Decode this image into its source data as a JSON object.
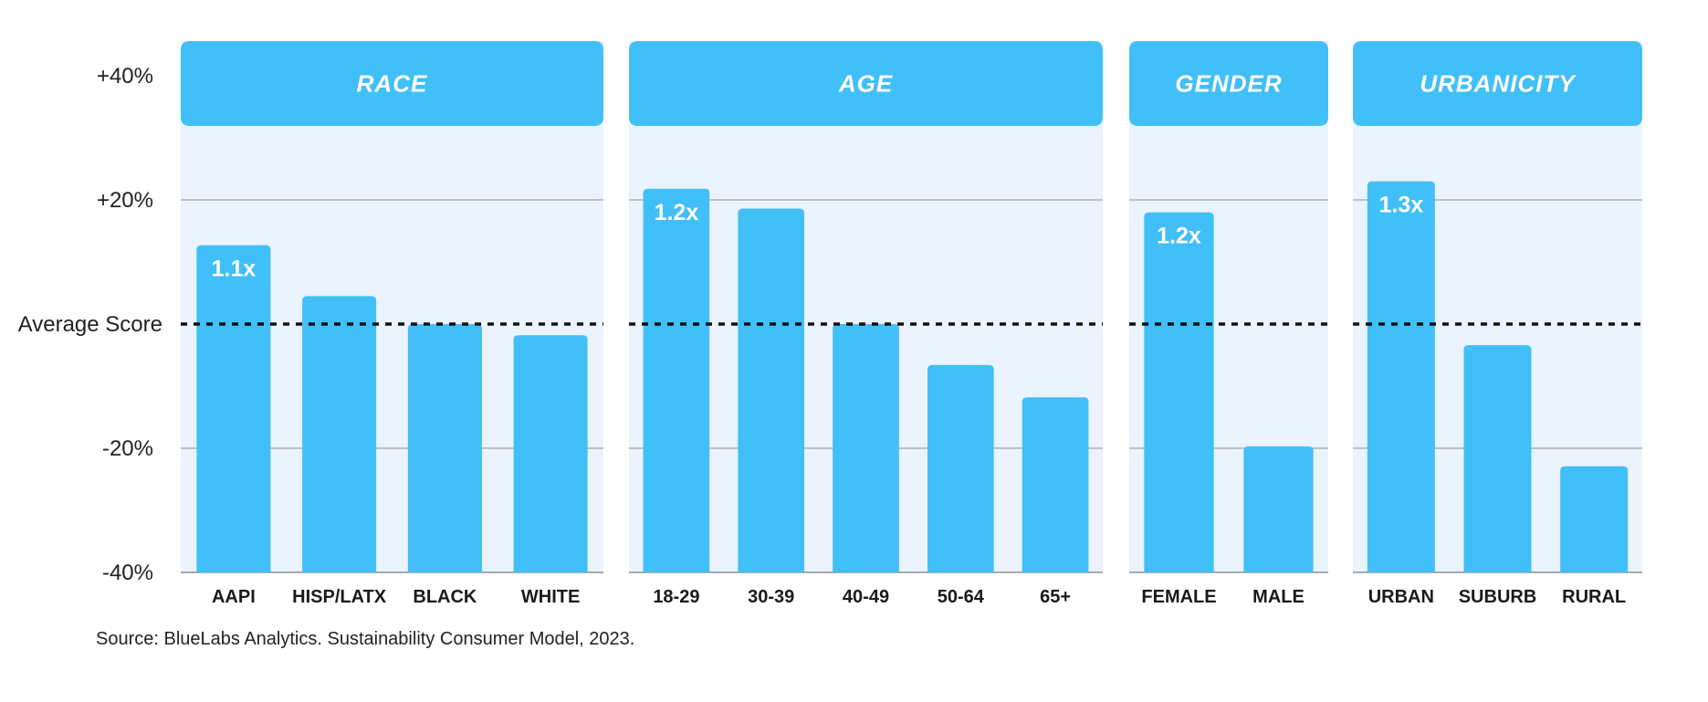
{
  "chart_data": {
    "type": "bar",
    "ylim": [
      -40,
      40
    ],
    "yticks": [
      {
        "value": 40,
        "label": "+40%"
      },
      {
        "value": 20,
        "label": "+20%"
      },
      {
        "value": 0,
        "label": "Average Score"
      },
      {
        "value": -20,
        "label": "-20%"
      },
      {
        "value": -40,
        "label": "-40%"
      }
    ],
    "reference_line": {
      "value": 0,
      "style": "dashed"
    },
    "grid": true,
    "colors": {
      "bar": "#41bff8",
      "panel_bg": "#eaf3fe",
      "header": "#41bff8",
      "grid": "#8a8f96"
    },
    "panels": [
      {
        "title": "RACE",
        "categories": [
          "AAPI",
          "HISP/LATX",
          "BLACK",
          "WHITE"
        ],
        "values": [
          12.7,
          4.5,
          0,
          -1.8
        ],
        "labels": [
          "1.1x",
          "",
          "",
          ""
        ]
      },
      {
        "title": "AGE",
        "categories": [
          "18-29",
          "30-39",
          "40-49",
          "50-64",
          "65+"
        ],
        "values": [
          21.8,
          18.6,
          0,
          -6.6,
          -11.8
        ],
        "labels": [
          "1.2x",
          "",
          "",
          "",
          ""
        ]
      },
      {
        "title": "GENDER",
        "categories": [
          "FEMALE",
          "MALE"
        ],
        "values": [
          18.0,
          -19.7
        ],
        "labels": [
          "1.2x",
          ""
        ]
      },
      {
        "title": "URBANICITY",
        "categories": [
          "URBAN",
          "SUBURB",
          "RURAL"
        ],
        "values": [
          23.0,
          -3.4,
          -22.9
        ],
        "labels": [
          "1.3x",
          "",
          ""
        ]
      }
    ]
  },
  "source": "Source: BlueLabs Analytics. Sustainability Consumer Model, 2023."
}
